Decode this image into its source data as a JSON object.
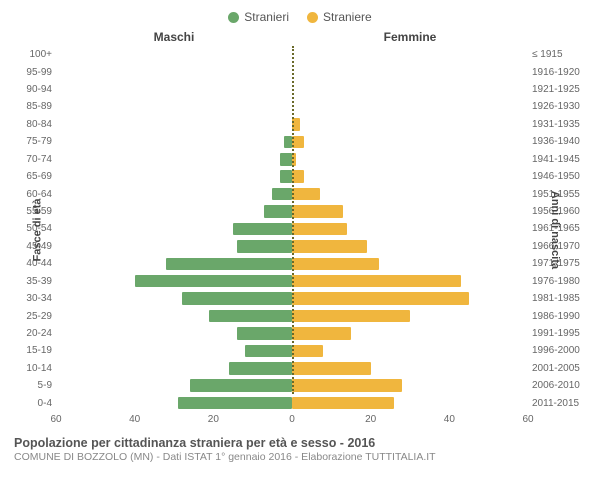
{
  "chart": {
    "type": "population-pyramid",
    "legend": {
      "male": {
        "label": "Stranieri",
        "color": "#6aa76a"
      },
      "female": {
        "label": "Straniere",
        "color": "#f0b63e"
      }
    },
    "headers": {
      "male": "Maschi",
      "female": "Femmine"
    },
    "axis_labels": {
      "left": "Fasce di età",
      "right": "Anni di nascita"
    },
    "x_max": 60,
    "x_ticks": [
      60,
      40,
      20,
      0,
      20,
      40,
      60
    ],
    "grid_color": "#e0e0e0",
    "background_color": "#ffffff",
    "centerline_color": "#6a6a2a",
    "bar_height_ratio": 0.72,
    "label_fontsize": 10,
    "header_fontsize": 12,
    "rows": [
      {
        "age": "100+",
        "year": "≤ 1915",
        "m": 0,
        "f": 0
      },
      {
        "age": "95-99",
        "year": "1916-1920",
        "m": 0,
        "f": 0
      },
      {
        "age": "90-94",
        "year": "1921-1925",
        "m": 0,
        "f": 0
      },
      {
        "age": "85-89",
        "year": "1926-1930",
        "m": 0,
        "f": 0
      },
      {
        "age": "80-84",
        "year": "1931-1935",
        "m": 0,
        "f": 2
      },
      {
        "age": "75-79",
        "year": "1936-1940",
        "m": 2,
        "f": 3
      },
      {
        "age": "70-74",
        "year": "1941-1945",
        "m": 3,
        "f": 1
      },
      {
        "age": "65-69",
        "year": "1946-1950",
        "m": 3,
        "f": 3
      },
      {
        "age": "60-64",
        "year": "1951-1955",
        "m": 5,
        "f": 7
      },
      {
        "age": "55-59",
        "year": "1956-1960",
        "m": 7,
        "f": 13
      },
      {
        "age": "50-54",
        "year": "1961-1965",
        "m": 15,
        "f": 14
      },
      {
        "age": "45-49",
        "year": "1966-1970",
        "m": 14,
        "f": 19
      },
      {
        "age": "40-44",
        "year": "1971-1975",
        "m": 32,
        "f": 22
      },
      {
        "age": "35-39",
        "year": "1976-1980",
        "m": 40,
        "f": 43
      },
      {
        "age": "30-34",
        "year": "1981-1985",
        "m": 28,
        "f": 45
      },
      {
        "age": "25-29",
        "year": "1986-1990",
        "m": 21,
        "f": 30
      },
      {
        "age": "20-24",
        "year": "1991-1995",
        "m": 14,
        "f": 15
      },
      {
        "age": "15-19",
        "year": "1996-2000",
        "m": 12,
        "f": 8
      },
      {
        "age": "10-14",
        "year": "2001-2005",
        "m": 16,
        "f": 20
      },
      {
        "age": "5-9",
        "year": "2006-2010",
        "m": 26,
        "f": 28
      },
      {
        "age": "0-4",
        "year": "2011-2015",
        "m": 29,
        "f": 26
      }
    ]
  },
  "footer": {
    "title": "Popolazione per cittadinanza straniera per età e sesso - 2016",
    "subtitle": "COMUNE DI BOZZOLO (MN) - Dati ISTAT 1° gennaio 2016 - Elaborazione TUTTITALIA.IT"
  }
}
